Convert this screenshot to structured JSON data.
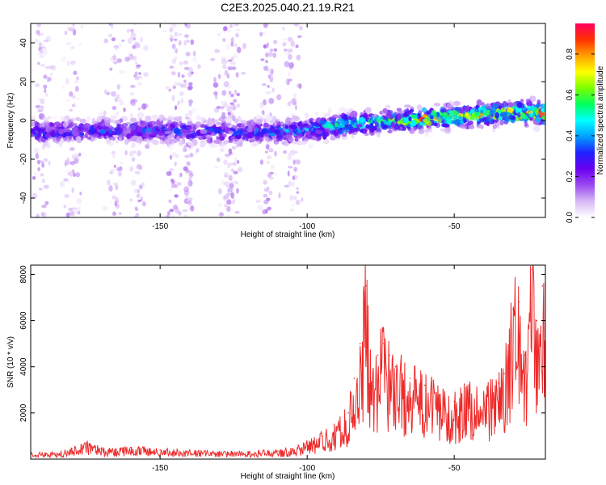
{
  "title": "C2E3.2025.040.21.19.R21",
  "colors": {
    "snr_line": "#ee2a2a",
    "colormap": [
      "#ffffff",
      "#d8b8f6",
      "#9a4bf0",
      "#6a00f0",
      "#2020ff",
      "#00a0ff",
      "#00ffff",
      "#00ff60",
      "#7cff00",
      "#ffff00",
      "#ffa000",
      "#ff3000",
      "#ff0060"
    ]
  },
  "chart_data": [
    {
      "type": "heatmap",
      "xlabel": "Height of straight line (km)",
      "ylabel": "Frequency (Hz)",
      "xlim": [
        -194,
        -19
      ],
      "ylim": [
        -50,
        50
      ],
      "xticks": [
        -150,
        -100,
        -50
      ],
      "yticks": [
        -40,
        -20,
        0,
        20,
        40
      ],
      "colorbar": {
        "label": "Normalized spectral amplitude",
        "range": [
          0,
          0.95
        ],
        "ticks": [
          0.0,
          0.2,
          0.4,
          0.6,
          0.8
        ]
      },
      "ridge": {
        "x": [
          -190,
          -170,
          -150,
          -130,
          -120,
          -110,
          -100,
          -90,
          -80,
          -70,
          -60,
          -50,
          -40,
          -30,
          -20
        ],
        "center_frequency": [
          -6,
          -5,
          -5,
          -6,
          -6,
          -6,
          -5,
          -3,
          -1,
          0,
          1,
          2,
          3,
          4,
          4
        ],
        "peak_amplitude": [
          0.35,
          0.35,
          0.35,
          0.35,
          0.33,
          0.4,
          0.45,
          0.55,
          0.55,
          0.6,
          0.85,
          0.7,
          0.75,
          0.8,
          0.95
        ]
      },
      "grid": false
    },
    {
      "type": "line",
      "xlabel": "Height of straight line (km)",
      "ylabel": "SNR (10 * v/v)",
      "xlim": [
        -194,
        -19
      ],
      "ylim": [
        0,
        8400
      ],
      "xticks": [
        -150,
        -100,
        -50
      ],
      "yticks": [
        2000,
        4000,
        6000,
        8000
      ],
      "series": [
        {
          "x": [
            -194,
            -185,
            -180,
            -175,
            -170,
            -165,
            -160,
            -150,
            -140,
            -130,
            -120,
            -110,
            -105,
            -100,
            -95,
            -90,
            -86,
            -84,
            -82,
            -80,
            -78,
            -76,
            -74,
            -72,
            -70,
            -65,
            -60,
            -55,
            -50,
            -45,
            -40,
            -35,
            -33,
            -30,
            -28,
            -26,
            -24,
            -22,
            -20,
            -19
          ],
          "values": [
            300,
            250,
            450,
            700,
            450,
            400,
            500,
            400,
            350,
            300,
            300,
            350,
            450,
            700,
            1000,
            1400,
            2000,
            3500,
            5000,
            7500,
            3000,
            4500,
            5000,
            4500,
            4000,
            3500,
            3200,
            2800,
            2500,
            3000,
            2800,
            3300,
            3700,
            6500,
            6800,
            4500,
            8200,
            6000,
            7500,
            5000
          ]
        }
      ],
      "grid": false
    }
  ]
}
